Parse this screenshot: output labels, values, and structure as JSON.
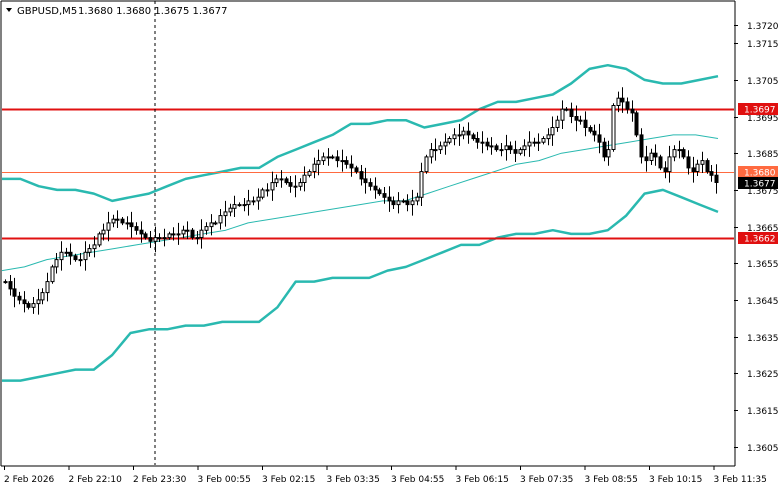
{
  "header": {
    "symbol_label": "GBPUSD,M5",
    "ohlc_text": "1.3680 1.3680 1.3675 1.3677"
  },
  "colors": {
    "background": "#ffffff",
    "axis": "#000000",
    "grid": "#c8c8c8",
    "candle": "#000000",
    "bollinger_band": "#2ab9b0",
    "moving_average": "#2ab9b0",
    "level_line": "#e01010",
    "current_price_line": "#ff6a40",
    "level_label_bg": "#e01010",
    "current_label_bg": "#000000",
    "label_text": "#ffffff"
  },
  "chart_data": {
    "type": "candlestick",
    "title": "GBPUSD,M5",
    "y_axis": {
      "ylim": [
        1.36,
        1.3725
      ],
      "tick_labels": [
        "1.3720",
        "1.3715",
        "1.3705",
        "1.3695",
        "1.3685",
        "1.3675",
        "1.3665",
        "1.3655",
        "1.3645",
        "1.3635",
        "1.3625",
        "1.3615",
        "1.3605"
      ]
    },
    "x_axis": {
      "tick_labels": [
        "2 Feb 2026",
        "2 Feb 22:10",
        "2 Feb 23:30",
        "3 Feb 00:55",
        "3 Feb 02:15",
        "3 Feb 03:35",
        "3 Feb 04:55",
        "3 Feb 06:15",
        "3 Feb 07:35",
        "3 Feb 08:55",
        "3 Feb 10:15",
        "3 Feb 11:35"
      ]
    },
    "grid": false,
    "horizontal_levels": [
      {
        "value": 1.3697,
        "label": "1.3697",
        "kind": "level"
      },
      {
        "value": 1.368,
        "label": "1.3680",
        "kind": "current"
      },
      {
        "value": 1.3662,
        "label": "1.3662",
        "kind": "level"
      }
    ],
    "price_label": {
      "value": 1.3677,
      "label": "1.3677"
    },
    "close_series": [
      1.365,
      1.3648,
      1.3646,
      1.3645,
      1.3644,
      1.3643,
      1.3644,
      1.3645,
      1.3647,
      1.365,
      1.3654,
      1.3656,
      1.3658,
      1.3658,
      1.3657,
      1.3656,
      1.3656,
      1.3658,
      1.3659,
      1.366,
      1.3663,
      1.3664,
      1.3666,
      1.3667,
      1.3667,
      1.3666,
      1.3666,
      1.3665,
      1.3664,
      1.3663,
      1.3662,
      1.3661,
      1.3662,
      1.3662,
      1.3662,
      1.3663,
      1.3663,
      1.3663,
      1.3664,
      1.3664,
      1.3662,
      1.3662,
      1.3664,
      1.3665,
      1.3666,
      1.3666,
      1.3668,
      1.3669,
      1.367,
      1.3671,
      1.3671,
      1.3671,
      1.3672,
      1.3672,
      1.3673,
      1.3675,
      1.3675,
      1.3677,
      1.3678,
      1.3678,
      1.3677,
      1.3676,
      1.3676,
      1.3677,
      1.3679,
      1.368,
      1.3682,
      1.3683,
      1.3684,
      1.3684,
      1.3684,
      1.3683,
      1.3683,
      1.3682,
      1.3681,
      1.368,
      1.3678,
      1.3677,
      1.3676,
      1.3675,
      1.3674,
      1.3673,
      1.3672,
      1.3671,
      1.3672,
      1.3672,
      1.3671,
      1.3672,
      1.3673,
      1.368,
      1.3684,
      1.3686,
      1.3686,
      1.3687,
      1.3688,
      1.3689,
      1.369,
      1.369,
      1.3691,
      1.369,
      1.3689,
      1.3688,
      1.3688,
      1.3687,
      1.3687,
      1.3686,
      1.3686,
      1.3687,
      1.3686,
      1.3685,
      1.3686,
      1.3687,
      1.3688,
      1.3688,
      1.3688,
      1.3689,
      1.369,
      1.3692,
      1.3694,
      1.3697,
      1.3697,
      1.3695,
      1.3694,
      1.3694,
      1.3692,
      1.3691,
      1.369,
      1.3688,
      1.3684,
      1.3686,
      1.3698,
      1.37,
      1.3699,
      1.3697,
      1.3696,
      1.369,
      1.3684,
      1.3683,
      1.3685,
      1.3684,
      1.3681,
      1.368,
      1.3684,
      1.3686,
      1.3686,
      1.3684,
      1.3681,
      1.368,
      1.3682,
      1.3683,
      1.368,
      1.3679,
      1.3677
    ],
    "moving_average": [
      1.3653,
      1.3654,
      1.3656,
      1.3657,
      1.3658,
      1.3659,
      1.366,
      1.3661,
      1.3662,
      1.3663,
      1.3664,
      1.3666,
      1.3667,
      1.3668,
      1.3669,
      1.367,
      1.3671,
      1.3672,
      1.3672,
      1.3674,
      1.3676,
      1.3678,
      1.368,
      1.3682,
      1.3683,
      1.3685,
      1.3686,
      1.3687,
      1.3688,
      1.3689,
      1.369,
      1.369,
      1.3689
    ],
    "upper_band": [
      1.3678,
      1.3678,
      1.3676,
      1.3675,
      1.3675,
      1.3674,
      1.3672,
      1.3673,
      1.3674,
      1.3676,
      1.3678,
      1.3679,
      1.368,
      1.3681,
      1.3681,
      1.3684,
      1.3686,
      1.3688,
      1.369,
      1.3693,
      1.3693,
      1.3694,
      1.3694,
      1.3692,
      1.3693,
      1.3694,
      1.3697,
      1.3699,
      1.3699,
      1.37,
      1.3701,
      1.3704,
      1.3708,
      1.3709,
      1.3708,
      1.3705,
      1.3704,
      1.3704,
      1.3705,
      1.3706
    ],
    "lower_band": [
      1.3623,
      1.3623,
      1.3624,
      1.3625,
      1.3626,
      1.3626,
      1.363,
      1.3636,
      1.3637,
      1.3637,
      1.3638,
      1.3638,
      1.3639,
      1.3639,
      1.3639,
      1.3643,
      1.365,
      1.365,
      1.3651,
      1.3651,
      1.3651,
      1.3653,
      1.3654,
      1.3656,
      1.3658,
      1.366,
      1.366,
      1.3662,
      1.3663,
      1.3663,
      1.3664,
      1.3663,
      1.3663,
      1.3664,
      1.3668,
      1.3674,
      1.3675,
      1.3673,
      1.3671,
      1.3669
    ]
  }
}
